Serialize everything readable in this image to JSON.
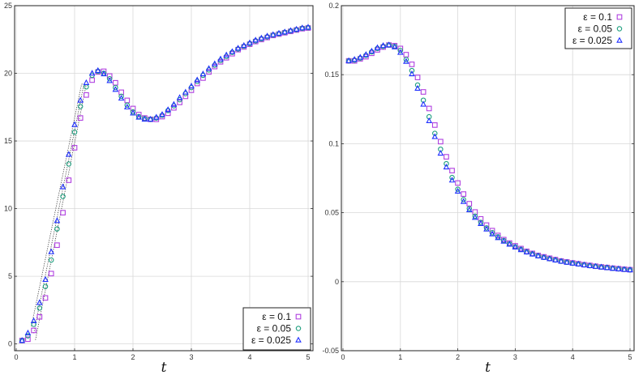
{
  "chart_data": [
    {
      "type": "scatter",
      "xlabel": "t",
      "ylabel": "",
      "xlim": [
        0,
        5
      ],
      "ylim": [
        -0.5,
        25
      ],
      "xticks": [
        "0",
        "1",
        "2",
        "3",
        "4",
        "5"
      ],
      "yticks": [
        "0",
        "5",
        "10",
        "15",
        "20",
        "25"
      ],
      "grid": true,
      "legend_position": "bottom-right",
      "x": [
        0.1,
        0.2,
        0.3,
        0.4,
        0.5,
        0.6,
        0.7,
        0.8,
        0.9,
        1.0,
        1.1,
        1.2,
        1.3,
        1.4,
        1.5,
        1.6,
        1.7,
        1.8,
        1.9,
        2.0,
        2.1,
        2.2,
        2.3,
        2.4,
        2.5,
        2.6,
        2.7,
        2.8,
        2.9,
        3.0,
        3.1,
        3.2,
        3.3,
        3.4,
        3.5,
        3.6,
        3.7,
        3.8,
        3.9,
        4.0,
        4.1,
        4.2,
        4.3,
        4.4,
        4.5,
        4.6,
        4.7,
        4.8,
        4.9,
        5.0
      ],
      "series": [
        {
          "name": "ε = 0.1",
          "marker": "square",
          "color": "#b040e0",
          "values": [
            0.25,
            0.35,
            1.0,
            2.0,
            3.4,
            5.2,
            7.3,
            9.7,
            12.1,
            14.5,
            16.7,
            18.4,
            19.5,
            20.1,
            20.15,
            19.8,
            19.3,
            18.6,
            18.0,
            17.4,
            16.95,
            16.7,
            16.6,
            16.6,
            16.8,
            17.05,
            17.45,
            17.85,
            18.3,
            18.75,
            19.25,
            19.65,
            20.1,
            20.5,
            20.85,
            21.15,
            21.45,
            21.75,
            21.95,
            22.15,
            22.35,
            22.5,
            22.65,
            22.8,
            22.9,
            23.0,
            23.1,
            23.2,
            23.3,
            23.35
          ]
        },
        {
          "name": "ε = 0.05",
          "marker": "circle",
          "color": "#20a080",
          "values": [
            0.25,
            0.6,
            1.45,
            2.65,
            4.25,
            6.2,
            8.5,
            10.9,
            13.3,
            15.65,
            17.55,
            19.0,
            19.85,
            20.15,
            20.0,
            19.6,
            18.95,
            18.3,
            17.65,
            17.15,
            16.8,
            16.65,
            16.6,
            16.7,
            16.9,
            17.25,
            17.6,
            18.05,
            18.5,
            18.95,
            19.4,
            19.85,
            20.25,
            20.6,
            20.95,
            21.25,
            21.55,
            21.8,
            22.0,
            22.2,
            22.4,
            22.55,
            22.7,
            22.83,
            22.93,
            23.03,
            23.13,
            23.23,
            23.33,
            23.38
          ]
        },
        {
          "name": "ε = 0.025",
          "marker": "triangle",
          "color": "#2030ff",
          "values": [
            0.25,
            0.8,
            1.7,
            3.05,
            4.75,
            6.8,
            9.1,
            11.6,
            14.0,
            16.2,
            18.0,
            19.3,
            20.0,
            20.2,
            19.95,
            19.45,
            18.8,
            18.15,
            17.5,
            17.05,
            16.75,
            16.6,
            16.6,
            16.75,
            16.95,
            17.3,
            17.7,
            18.2,
            18.6,
            19.05,
            19.5,
            19.95,
            20.35,
            20.7,
            21.05,
            21.35,
            21.6,
            21.85,
            22.05,
            22.25,
            22.45,
            22.6,
            22.75,
            22.85,
            22.95,
            23.05,
            23.15,
            23.25,
            23.35,
            23.4
          ]
        }
      ],
      "guide_lines": [
        [
          [
            0.33,
            0.3
          ],
          [
            1.2,
            19.2
          ]
        ],
        [
          [
            0.3,
            0.8
          ],
          [
            1.16,
            19.2
          ]
        ],
        [
          [
            0.26,
            1.3
          ],
          [
            1.12,
            19.2
          ]
        ],
        [
          [
            1.12,
            19.2
          ],
          [
            1.2,
            19.2
          ]
        ]
      ]
    },
    {
      "type": "scatter",
      "xlabel": "t",
      "ylabel": "",
      "xlim": [
        0,
        5
      ],
      "ylim": [
        -0.05,
        0.2
      ],
      "xticks": [
        "0",
        "1",
        "2",
        "3",
        "4",
        "5"
      ],
      "yticks": [
        "-0.05",
        "0",
        "0.05",
        "0.1",
        "0.15",
        "0.2"
      ],
      "grid": true,
      "legend_position": "top-right",
      "x": [
        0.1,
        0.2,
        0.3,
        0.4,
        0.5,
        0.6,
        0.7,
        0.8,
        0.9,
        1.0,
        1.1,
        1.2,
        1.3,
        1.4,
        1.5,
        1.6,
        1.7,
        1.8,
        1.9,
        2.0,
        2.1,
        2.2,
        2.3,
        2.4,
        2.5,
        2.6,
        2.7,
        2.8,
        2.9,
        3.0,
        3.1,
        3.2,
        3.3,
        3.4,
        3.5,
        3.6,
        3.7,
        3.8,
        3.9,
        4.0,
        4.1,
        4.2,
        4.3,
        4.4,
        4.5,
        4.6,
        4.7,
        4.8,
        4.9,
        5.0
      ],
      "series": [
        {
          "name": "ε = 0.1",
          "marker": "square",
          "color": "#b040e0",
          "values": [
            0.16,
            0.16,
            0.1615,
            0.163,
            0.1655,
            0.168,
            0.17,
            0.1715,
            0.171,
            0.169,
            0.1645,
            0.1575,
            0.148,
            0.1375,
            0.1255,
            0.1135,
            0.1015,
            0.0905,
            0.0805,
            0.0715,
            0.0635,
            0.0565,
            0.0505,
            0.0455,
            0.041,
            0.037,
            0.0335,
            0.0305,
            0.028,
            0.026,
            0.024,
            0.022,
            0.0205,
            0.019,
            0.018,
            0.017,
            0.016,
            0.015,
            0.0143,
            0.0136,
            0.013,
            0.0123,
            0.0118,
            0.0112,
            0.0107,
            0.0103,
            0.0098,
            0.0094,
            0.009,
            0.0087
          ]
        },
        {
          "name": "ε = 0.05",
          "marker": "circle",
          "color": "#20a080",
          "values": [
            0.16,
            0.1605,
            0.162,
            0.164,
            0.1665,
            0.169,
            0.1705,
            0.1715,
            0.1705,
            0.1675,
            0.161,
            0.153,
            0.1425,
            0.1315,
            0.1195,
            0.1075,
            0.096,
            0.0855,
            0.0755,
            0.067,
            0.0595,
            0.053,
            0.0475,
            0.043,
            0.039,
            0.0355,
            0.0325,
            0.0298,
            0.0274,
            0.0253,
            0.0234,
            0.0216,
            0.0201,
            0.0187,
            0.0176,
            0.0166,
            0.0157,
            0.0148,
            0.0141,
            0.0134,
            0.0128,
            0.0122,
            0.0116,
            0.0111,
            0.0106,
            0.0102,
            0.0097,
            0.0093,
            0.0089,
            0.0086
          ]
        },
        {
          "name": "ε = 0.025",
          "marker": "triangle",
          "color": "#2030ff",
          "values": [
            0.16,
            0.161,
            0.1625,
            0.1645,
            0.167,
            0.1695,
            0.171,
            0.1715,
            0.17,
            0.166,
            0.1595,
            0.1505,
            0.14,
            0.1285,
            0.1165,
            0.105,
            0.093,
            0.083,
            0.0735,
            0.0655,
            0.058,
            0.052,
            0.0465,
            0.042,
            0.038,
            0.0345,
            0.0318,
            0.0292,
            0.027,
            0.025,
            0.0231,
            0.0214,
            0.0199,
            0.0186,
            0.0175,
            0.0165,
            0.0156,
            0.0147,
            0.014,
            0.0133,
            0.0127,
            0.0121,
            0.0115,
            0.011,
            0.0105,
            0.0101,
            0.0096,
            0.0092,
            0.0088,
            0.0085
          ]
        }
      ]
    }
  ]
}
